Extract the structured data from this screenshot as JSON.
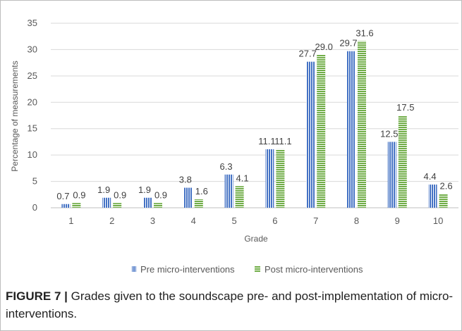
{
  "chart_data": {
    "type": "bar",
    "title": "",
    "xlabel": "Grade",
    "ylabel": "Percentage of measurements",
    "ylim": [
      0,
      35
    ],
    "yticks": [
      "0",
      "5",
      "10",
      "15",
      "20",
      "25",
      "30",
      "35"
    ],
    "categories": [
      "1",
      "2",
      "3",
      "4",
      "5",
      "6",
      "7",
      "8",
      "9",
      "10"
    ],
    "grid": true,
    "legend_position": "bottom",
    "series": [
      {
        "name": "Pre micro-interventions",
        "color": "#4472C4",
        "pattern": "vertical-stripes",
        "values": [
          0.7,
          1.9,
          1.9,
          3.8,
          6.3,
          11.1,
          27.7,
          29.7,
          12.5,
          4.4
        ],
        "labels": [
          "0.7",
          "1.9",
          "1.9",
          "3.8",
          "6.3",
          "11.1",
          "27.7",
          "29.7",
          "12.5",
          "4.4"
        ]
      },
      {
        "name": "Post micro-interventions",
        "color": "#70AD47",
        "pattern": "horizontal-stripes",
        "values": [
          0.9,
          0.9,
          0.9,
          1.6,
          4.1,
          11.1,
          29.0,
          31.6,
          17.5,
          2.6
        ],
        "labels": [
          "0.9",
          "0.9",
          "0.9",
          "1.6",
          "4.1",
          "11.1",
          "29.0",
          "31.6",
          "17.5",
          "2.6"
        ]
      }
    ]
  },
  "caption": {
    "label": "FIGURE 7 |",
    "text": " Grades given to the soundscape pre- and post-implementation of micro-interventions."
  }
}
